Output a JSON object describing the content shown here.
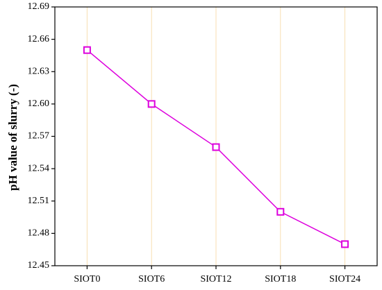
{
  "chart_data": {
    "type": "line",
    "y_label": "pH value of slurry (-)",
    "categories": [
      "SIOT0",
      "SIOT6",
      "SIOT12",
      "SIOT18",
      "SIOT24"
    ],
    "values": [
      12.65,
      12.6,
      12.56,
      12.5,
      12.47
    ],
    "color": "#dd00dd",
    "grid_color": "#f8deb0",
    "ylim": [
      12.45,
      12.69
    ],
    "yticks": [
      {
        "value": 12.45,
        "label": "12.45"
      },
      {
        "value": 12.48,
        "label": "12.48"
      },
      {
        "value": 12.51,
        "label": "12.51"
      },
      {
        "value": 12.54,
        "label": "12.54"
      },
      {
        "value": 12.57,
        "label": "12.57"
      },
      {
        "value": 12.6,
        "label": "12.60"
      },
      {
        "value": 12.63,
        "label": "12.63"
      },
      {
        "value": 12.66,
        "label": "12.66"
      },
      {
        "value": 12.69,
        "label": "12.69"
      }
    ],
    "grid": true
  }
}
